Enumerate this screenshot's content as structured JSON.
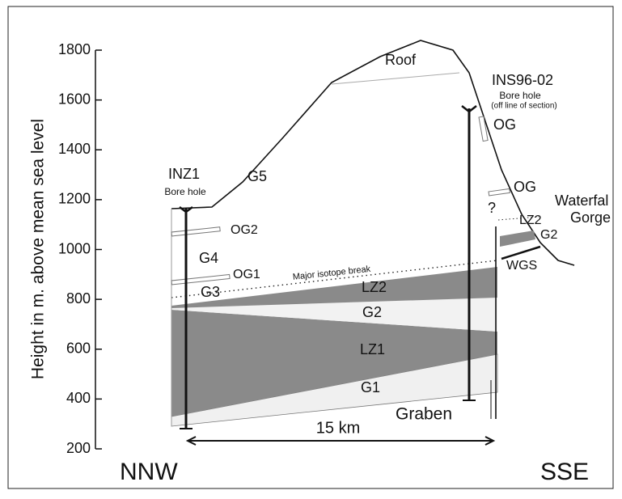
{
  "axis": {
    "label": "Height in m. above mean sea level",
    "ylim": [
      200,
      1800
    ],
    "yticks": [
      200,
      400,
      600,
      800,
      1000,
      1200,
      1400,
      1600,
      1800
    ]
  },
  "labels": {
    "roof": "Roof",
    "ins": "INS96-02",
    "ins_sub": "Bore hole",
    "ins_note": "(off line of section)",
    "og_upper": "OG",
    "og_lower": "OG",
    "waterfal": "Waterfal",
    "gorge": "Gorge",
    "inz": "INZ1",
    "inz_sub": "Bore hole",
    "g5": "G5",
    "og2": "OG2",
    "g4": "G4",
    "og1": "OG1",
    "g3": "G3",
    "isotope": "Major isotope break",
    "lz2": "LZ2",
    "g2": "G2",
    "lz1": "LZ1",
    "g1": "G1",
    "graben": "Graben",
    "scale": "15 km",
    "question": "?",
    "lz2_right": "LZ2",
    "g2_right": "G2",
    "wgs": "WGS",
    "nnw": "NNW",
    "sse": "SSE"
  }
}
